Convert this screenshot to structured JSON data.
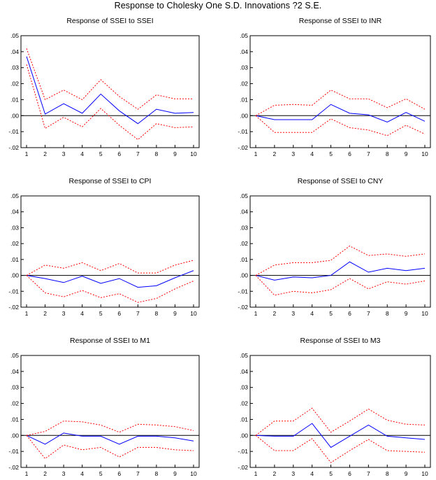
{
  "title": "Response to Cholesky One S.D. Innovations ?2 S.E.",
  "colors": {
    "response": "#0000ff",
    "band": "#ff0000",
    "axis": "#000000",
    "frame": "#000000"
  },
  "chart_data": [
    {
      "type": "line",
      "title": "Response of SSEI to SSEI",
      "x": [
        1,
        2,
        3,
        4,
        5,
        6,
        7,
        8,
        9,
        10
      ],
      "xticks": [
        "1",
        "2",
        "3",
        "4",
        "5",
        "6",
        "7",
        "8",
        "9",
        "10"
      ],
      "yticks": [
        ".05",
        ".04",
        ".03",
        ".02",
        ".01",
        ".00",
        "-.01",
        "-.02"
      ],
      "ylim": [
        -0.02,
        0.05
      ],
      "series": [
        {
          "role": "response",
          "style": "solid",
          "values": [
            0.037,
            0.001,
            0.0075,
            0.0015,
            0.0135,
            0.003,
            -0.005,
            0.004,
            0.0015,
            0.002
          ]
        },
        {
          "role": "upper",
          "style": "dashed",
          "values": [
            0.042,
            0.01,
            0.016,
            0.01,
            0.0225,
            0.012,
            0.004,
            0.013,
            0.0105,
            0.0105
          ]
        },
        {
          "role": "lower",
          "style": "dashed",
          "values": [
            0.032,
            -0.008,
            -0.001,
            -0.007,
            0.0045,
            -0.006,
            -0.015,
            -0.005,
            -0.0075,
            -0.007
          ]
        }
      ]
    },
    {
      "type": "line",
      "title": "Response of SSEI to INR",
      "x": [
        1,
        2,
        3,
        4,
        5,
        6,
        7,
        8,
        9,
        10
      ],
      "xticks": [
        "1",
        "2",
        "3",
        "4",
        "5",
        "6",
        "7",
        "8",
        "9",
        "10"
      ],
      "yticks": [
        ".05",
        ".04",
        ".03",
        ".02",
        ".01",
        ".00",
        "-.01",
        "-.02"
      ],
      "ylim": [
        -0.02,
        0.05
      ],
      "series": [
        {
          "role": "response",
          "style": "solid",
          "values": [
            0.0,
            -0.0025,
            -0.0025,
            -0.0025,
            0.007,
            0.0015,
            0.0005,
            -0.004,
            0.002,
            -0.0035
          ]
        },
        {
          "role": "upper",
          "style": "dashed",
          "values": [
            0.0,
            0.0065,
            0.007,
            0.0065,
            0.016,
            0.0105,
            0.0105,
            0.005,
            0.0105,
            0.004
          ]
        },
        {
          "role": "lower",
          "style": "dashed",
          "values": [
            0.0,
            -0.0105,
            -0.0105,
            -0.0105,
            -0.002,
            -0.0075,
            -0.009,
            -0.0125,
            -0.006,
            -0.0115
          ]
        }
      ]
    },
    {
      "type": "line",
      "title": "Response of SSEI to CPI",
      "x": [
        1,
        2,
        3,
        4,
        5,
        6,
        7,
        8,
        9,
        10
      ],
      "xticks": [
        "1",
        "2",
        "3",
        "4",
        "5",
        "6",
        "7",
        "8",
        "9",
        "10"
      ],
      "yticks": [
        ".05",
        ".04",
        ".03",
        ".02",
        ".01",
        ".00",
        "-.01",
        "-.02"
      ],
      "ylim": [
        -0.02,
        0.05
      ],
      "series": [
        {
          "role": "response",
          "style": "solid",
          "values": [
            0.0,
            -0.002,
            -0.0045,
            -0.0005,
            -0.005,
            -0.002,
            -0.0075,
            -0.0065,
            -0.0015,
            0.003
          ]
        },
        {
          "role": "upper",
          "style": "dashed",
          "values": [
            0.0,
            0.0065,
            0.0045,
            0.008,
            0.003,
            0.0075,
            0.0015,
            0.0015,
            0.0065,
            0.0095
          ]
        },
        {
          "role": "lower",
          "style": "dashed",
          "values": [
            0.0,
            -0.011,
            -0.0135,
            -0.0095,
            -0.014,
            -0.0115,
            -0.017,
            -0.0145,
            -0.0085,
            -0.0035
          ]
        }
      ]
    },
    {
      "type": "line",
      "title": "Response of SSEI to CNY",
      "x": [
        1,
        2,
        3,
        4,
        5,
        6,
        7,
        8,
        9,
        10
      ],
      "xticks": [
        "1",
        "2",
        "3",
        "4",
        "5",
        "6",
        "7",
        "8",
        "9",
        "10"
      ],
      "yticks": [
        ".05",
        ".04",
        ".03",
        ".02",
        ".01",
        ".00",
        "-.01",
        "-.02"
      ],
      "ylim": [
        -0.02,
        0.05
      ],
      "series": [
        {
          "role": "response",
          "style": "solid",
          "values": [
            0.0,
            -0.003,
            -0.001,
            -0.0015,
            0.0,
            0.0085,
            0.002,
            0.0045,
            0.003,
            0.0045
          ]
        },
        {
          "role": "upper",
          "style": "dashed",
          "values": [
            0.0,
            0.0065,
            0.008,
            0.008,
            0.0095,
            0.0185,
            0.0125,
            0.0135,
            0.012,
            0.0135
          ]
        },
        {
          "role": "lower",
          "style": "dashed",
          "values": [
            0.0,
            -0.0125,
            -0.01,
            -0.011,
            -0.009,
            -0.002,
            -0.0085,
            -0.004,
            -0.0055,
            -0.0035
          ]
        }
      ]
    },
    {
      "type": "line",
      "title": "Response of SSEI to M1",
      "x": [
        1,
        2,
        3,
        4,
        5,
        6,
        7,
        8,
        9,
        10
      ],
      "xticks": [
        "1",
        "2",
        "3",
        "4",
        "5",
        "6",
        "7",
        "8",
        "9",
        "10"
      ],
      "yticks": [
        ".05",
        ".04",
        ".03",
        ".02",
        ".01",
        ".00",
        "-.01",
        "-.02"
      ],
      "ylim": [
        -0.02,
        0.05
      ],
      "series": [
        {
          "role": "response",
          "style": "solid",
          "values": [
            0.0,
            -0.0055,
            0.0015,
            -0.0005,
            -0.0005,
            -0.0055,
            -0.0005,
            -0.0005,
            -0.0015,
            -0.0035
          ]
        },
        {
          "role": "upper",
          "style": "dashed",
          "values": [
            0.0,
            0.0025,
            0.009,
            0.0085,
            0.0065,
            0.002,
            0.007,
            0.0065,
            0.0055,
            0.003
          ]
        },
        {
          "role": "lower",
          "style": "dashed",
          "values": [
            0.0,
            -0.0145,
            -0.006,
            -0.009,
            -0.0075,
            -0.0135,
            -0.0075,
            -0.0075,
            -0.009,
            -0.0095
          ]
        }
      ]
    },
    {
      "type": "line",
      "title": "Response of SSEI to M3",
      "x": [
        1,
        2,
        3,
        4,
        5,
        6,
        7,
        8,
        9,
        10
      ],
      "xticks": [
        "1",
        "2",
        "3",
        "4",
        "5",
        "6",
        "7",
        "8",
        "9",
        "10"
      ],
      "yticks": [
        ".05",
        ".04",
        ".03",
        ".02",
        ".01",
        ".00",
        "-.01",
        "-.02"
      ],
      "ylim": [
        -0.02,
        0.05
      ],
      "series": [
        {
          "role": "response",
          "style": "solid",
          "values": [
            0.0,
            -0.0005,
            -0.0005,
            0.0075,
            -0.0075,
            -0.0005,
            0.0065,
            -0.0005,
            -0.0015,
            -0.0025
          ]
        },
        {
          "role": "upper",
          "style": "dashed",
          "values": [
            0.0,
            0.009,
            0.009,
            0.017,
            0.002,
            0.009,
            0.0165,
            0.0095,
            0.007,
            0.0065
          ]
        },
        {
          "role": "lower",
          "style": "dashed",
          "values": [
            0.0,
            -0.0095,
            -0.0095,
            -0.002,
            -0.017,
            -0.0095,
            -0.0025,
            -0.0095,
            -0.01,
            -0.0105
          ]
        }
      ]
    }
  ]
}
